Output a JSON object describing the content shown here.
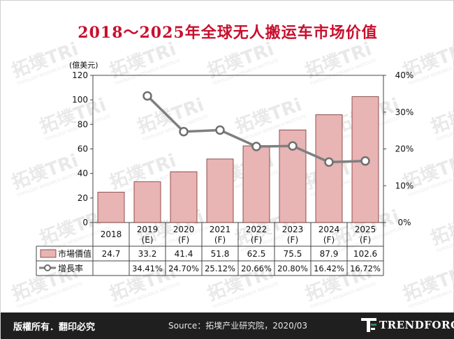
{
  "title": "2018～2025年全球无人搬运车市场价值",
  "footer": {
    "copyright": "版權所有．翻印必究",
    "source": "Source：拓墣产业研究院，2020/03",
    "brand": "TRENDFORCE"
  },
  "watermark": {
    "text": "拓墣TRi",
    "subtext": "TOPOLOGY RESEARCH INSTITUTE"
  },
  "chart_data": {
    "type": "bar",
    "y_unit_label": "(億美元)",
    "ylim": [
      0,
      120
    ],
    "y_ticks": [
      "0",
      "20",
      "40",
      "60",
      "80",
      "100",
      "120"
    ],
    "y2lim": [
      0,
      40
    ],
    "y2_ticks": [
      "0%",
      "10%",
      "20%",
      "30%",
      "40%"
    ],
    "categories": [
      {
        "year": "2018",
        "sub": ""
      },
      {
        "year": "2019",
        "sub": "(E)"
      },
      {
        "year": "2020",
        "sub": "(F)"
      },
      {
        "year": "2021",
        "sub": "(F)"
      },
      {
        "year": "2022",
        "sub": "(F)"
      },
      {
        "year": "2023",
        "sub": "(F)"
      },
      {
        "year": "2024",
        "sub": "(F)"
      },
      {
        "year": "2025",
        "sub": "(F)"
      }
    ],
    "series": [
      {
        "name": "市場價值",
        "kind": "bar",
        "color": "#e8b4b4",
        "edge": "#7a2f2f",
        "values": [
          24.7,
          33.2,
          41.4,
          51.8,
          62.5,
          75.5,
          87.9,
          102.6
        ],
        "labels": [
          "24.7",
          "33.2",
          "41.4",
          "51.8",
          "62.5",
          "75.5",
          "87.9",
          "102.6"
        ]
      },
      {
        "name": "增長率",
        "kind": "line",
        "axis": "right",
        "color": "#7f7f7f",
        "values": [
          null,
          34.41,
          24.7,
          25.12,
          20.66,
          20.8,
          16.42,
          16.72
        ],
        "labels": [
          "",
          "34.41%",
          "24.70%",
          "25.12%",
          "20.66%",
          "20.80%",
          "16.42%",
          "16.72%"
        ]
      }
    ]
  }
}
